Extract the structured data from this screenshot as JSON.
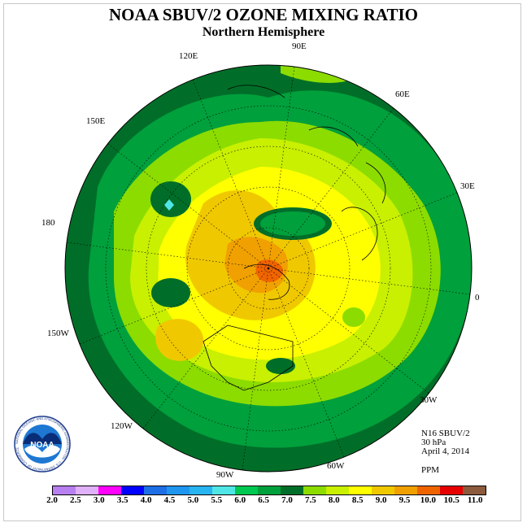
{
  "title": "NOAA SBUV/2 OZONE MIXING RATIO",
  "subtitle": "Northern Hemisphere",
  "longitude_labels": [
    "90E",
    "60E",
    "30E",
    "0",
    "30W",
    "60W",
    "90W",
    "120W",
    "150W",
    "180",
    "150E",
    "120E"
  ],
  "info": {
    "instrument": "N16 SBUV/2",
    "level": "30 hPa",
    "date": "April 4, 2014",
    "units": "PPM"
  },
  "logo": {
    "text": "NOAA",
    "ring_text": "NATIONAL OCEANIC AND ATMOSPHERIC ADMINISTRATION · U.S. DEPARTMENT OF COMMERCE"
  },
  "colorbar": {
    "ticks": [
      "2.0",
      "2.5",
      "3.0",
      "3.5",
      "4.0",
      "4.5",
      "5.0",
      "5.5",
      "6.0",
      "6.5",
      "7.0",
      "7.5",
      "8.0",
      "8.5",
      "9.0",
      "9.5",
      "10.0",
      "10.5",
      "11.0"
    ],
    "colors": [
      "#b87ff0",
      "#e0b0f8",
      "#ff00ff",
      "#0000ff",
      "#1e6ee6",
      "#1e96f0",
      "#28b4f0",
      "#50e6e6",
      "#00c850",
      "#00a03c",
      "#006e28",
      "#8cdc00",
      "#c8f000",
      "#ffff00",
      "#f0c800",
      "#f0a000",
      "#f06400",
      "#e60000",
      "#8c5a3c"
    ]
  }
}
